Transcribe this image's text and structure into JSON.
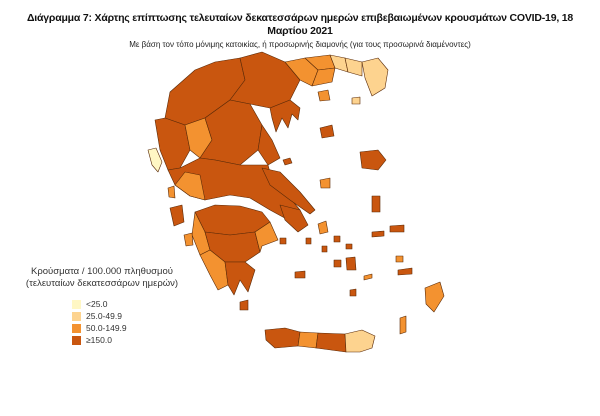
{
  "title": "Διάγραμμα 7: Χάρτης επίπτωσης τελευταίων δεκατεσσάρων ημερών επιβεβαιωμένων κρουσμάτων COVID-19, 18 Μαρτίου 2021",
  "subtitle": "Με βάση τον τόπο μόνιμης κατοικίας, ή προσωρινής διαμονής (για τους προσωρινά διαμένοντες)",
  "legend": {
    "title_line1": "Κρούσματα / 100.000 πληθυσμού",
    "title_line2": "(τελευταίων δεκατεσσάρων ημερών)",
    "items": [
      {
        "label": "<25.0",
        "color": "#fff7c4"
      },
      {
        "label": "25.0-49.9",
        "color": "#fdd38f"
      },
      {
        "label": "50.0-149.9",
        "color": "#f39230"
      },
      {
        "label": "≥150.0",
        "color": "#c9560f"
      }
    ]
  }
}
